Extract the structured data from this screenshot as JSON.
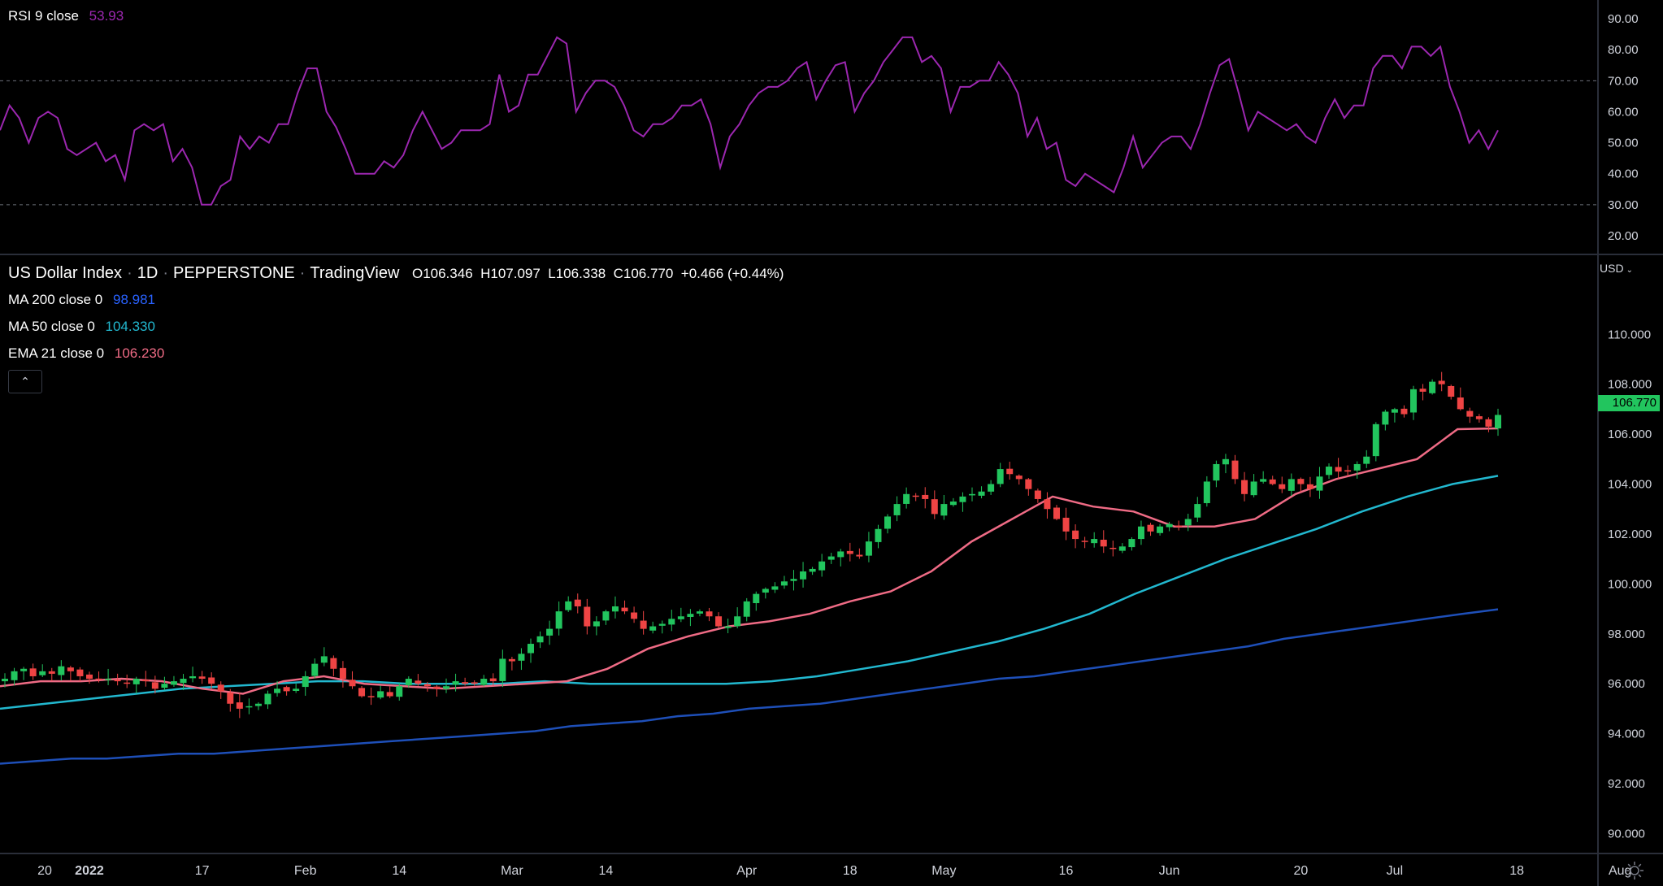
{
  "colors": {
    "background": "#000000",
    "up": "#22c55e",
    "down": "#ef4444",
    "rsi": "#9c27b0",
    "ma200": "#1e4fb8",
    "ma50": "#22b8cf",
    "ema21": "#ef6b85",
    "text": "#d1d4dc",
    "grid": "#2a2e39"
  },
  "rsi_legend": {
    "label": "RSI 9 close",
    "value": "53.93"
  },
  "main_legend": {
    "symbol": "US Dollar Index",
    "interval": "1D",
    "exchange": "PEPPERSTONE",
    "source": "TradingView",
    "ohlc": "O106.346  H107.097  L106.338  C106.770  +0.466 (+0.44%)"
  },
  "ma200_legend": {
    "label": "MA 200 close 0",
    "value": "98.981"
  },
  "ma50_legend": {
    "label": "MA 50 close 0",
    "value": "104.330"
  },
  "ema21_legend": {
    "label": "EMA 21 close 0",
    "value": "106.230"
  },
  "collapse_icon": "chevron-up-icon",
  "currency": "USD",
  "last_price": "106.770",
  "settings_icon": "gear-icon",
  "chart_data": [
    {
      "type": "line",
      "title": "RSI 9 close",
      "ylim": [
        15,
        95
      ],
      "y_ticks": [
        "90.00",
        "80.00",
        "70.00",
        "60.00",
        "50.00",
        "40.00",
        "30.00",
        "20.00"
      ],
      "y_tick_values": [
        90,
        80,
        70,
        60,
        50,
        40,
        30,
        20
      ],
      "bands": [
        70,
        30
      ],
      "series": [
        {
          "name": "RSI 9 close",
          "values": [
            54,
            62,
            58,
            50,
            58,
            60,
            58,
            48,
            46,
            48,
            50,
            44,
            46,
            38,
            54,
            56,
            54,
            56,
            44,
            48,
            42,
            30,
            30,
            36,
            38,
            52,
            48,
            52,
            50,
            56,
            56,
            66,
            74,
            74,
            60,
            55,
            48,
            40,
            40,
            40,
            44,
            42,
            46,
            54,
            60,
            54,
            48,
            50,
            54,
            54,
            54,
            56,
            72,
            60,
            62,
            72,
            72,
            78,
            84,
            82,
            60,
            66,
            70,
            70,
            68,
            62,
            54,
            52,
            56,
            56,
            58,
            62,
            62,
            64,
            56,
            42,
            52,
            56,
            62,
            66,
            68,
            68,
            70,
            74,
            76,
            64,
            70,
            75,
            76,
            60,
            66,
            70,
            76,
            80,
            84,
            84,
            76,
            78,
            74,
            60,
            68,
            68,
            70,
            70,
            76,
            72,
            66,
            52,
            58,
            48,
            50,
            38,
            36,
            40,
            38,
            36,
            34,
            42,
            52,
            42,
            46,
            50,
            52,
            52,
            48,
            56,
            66,
            75,
            77,
            66,
            54,
            60,
            58,
            56,
            54,
            56,
            52,
            50,
            58,
            64,
            58,
            62,
            62,
            74,
            78,
            78,
            74,
            81,
            81,
            78,
            81,
            68,
            60,
            50,
            54,
            48,
            54
          ],
          "last": 53.93
        }
      ]
    },
    {
      "type": "candlestick",
      "title": "US Dollar Index · 1D · PEPPERSTONE",
      "ylim": [
        89.2,
        113.2
      ],
      "y_ticks": [
        "110.000",
        "108.000",
        "106.000",
        "104.000",
        "102.000",
        "100.000",
        "98.000",
        "96.000",
        "94.000",
        "92.000",
        "90.000"
      ],
      "y_tick_values": [
        110,
        108,
        106,
        104,
        102,
        100,
        98,
        96,
        94,
        92,
        90
      ],
      "x_labels": [
        "20",
        "2022",
        "17",
        "Feb",
        "14",
        "Mar",
        "14",
        "Apr",
        "18",
        "May",
        "16",
        "Jun",
        "20",
        "Jul",
        "18",
        "Aug"
      ],
      "x_label_index": [
        -2,
        9,
        21,
        32,
        42,
        54,
        64,
        79,
        90,
        100,
        113,
        124,
        138,
        148,
        161,
        172
      ],
      "closes": [
        96.2,
        96.5,
        96.6,
        96.3,
        96.5,
        96.4,
        96.7,
        96.5,
        96.3,
        96.2,
        96.2,
        96.2,
        96.1,
        96.0,
        96.2,
        96.1,
        95.8,
        96.0,
        96.1,
        96.2,
        96.3,
        96.2,
        96.0,
        95.7,
        95.2,
        95.0,
        95.1,
        95.2,
        95.6,
        95.8,
        95.7,
        95.8,
        96.3,
        96.8,
        97.1,
        96.6,
        96.2,
        95.9,
        95.5,
        95.5,
        95.7,
        95.5,
        95.9,
        96.2,
        96.0,
        95.9,
        95.8,
        95.9,
        96.1,
        96.0,
        96.0,
        96.2,
        96.1,
        97.0,
        96.9,
        97.2,
        97.6,
        97.9,
        98.2,
        98.9,
        99.3,
        99.1,
        98.3,
        98.5,
        98.9,
        99.1,
        98.9,
        98.6,
        98.2,
        98.3,
        98.4,
        98.6,
        98.7,
        98.8,
        98.9,
        98.7,
        98.3,
        98.3,
        98.7,
        99.3,
        99.6,
        99.8,
        99.9,
        100.1,
        100.2,
        100.5,
        100.6,
        100.9,
        101.1,
        101.3,
        101.2,
        101.1,
        101.7,
        102.2,
        102.7,
        103.2,
        103.6,
        103.5,
        103.4,
        102.8,
        103.2,
        103.3,
        103.5,
        103.6,
        103.7,
        104.0,
        104.6,
        104.4,
        104.2,
        103.8,
        103.4,
        103.0,
        102.6,
        102.1,
        101.8,
        101.7,
        101.8,
        101.5,
        101.4,
        101.5,
        101.8,
        102.3,
        102.1,
        102.3,
        102.4,
        102.3,
        102.6,
        103.2,
        104.1,
        104.8,
        105.0,
        104.2,
        103.6,
        104.1,
        104.2,
        104.0,
        103.8,
        104.2,
        104.0,
        103.8,
        104.3,
        104.7,
        104.5,
        104.5,
        104.8,
        105.1,
        106.4,
        106.9,
        107.0,
        106.8,
        107.8,
        107.7,
        108.1,
        108.0,
        107.5,
        107.0,
        106.7,
        106.6,
        106.3,
        106.77
      ],
      "series": [
        {
          "name": "MA 200 close 0",
          "values": [
            92.8,
            92.9,
            93.0,
            93.0,
            93.1,
            93.2,
            93.2,
            93.3,
            93.4,
            93.5,
            93.6,
            93.7,
            93.8,
            93.9,
            94.0,
            94.1,
            94.3,
            94.4,
            94.5,
            94.7,
            94.8,
            95.0,
            95.1,
            95.2,
            95.4,
            95.6,
            95.8,
            96.0,
            96.2,
            96.3,
            96.5,
            96.7,
            96.9,
            97.1,
            97.3,
            97.5,
            97.8,
            98.0,
            98.2,
            98.4,
            98.6,
            98.8,
            98.981
          ]
        },
        {
          "name": "MA 50 close 0",
          "values": [
            95.0,
            95.2,
            95.4,
            95.6,
            95.8,
            95.9,
            96.0,
            96.1,
            96.1,
            96.0,
            96.0,
            96.0,
            96.1,
            96.0,
            96.0,
            96.0,
            96.0,
            96.1,
            96.3,
            96.6,
            96.9,
            97.3,
            97.7,
            98.2,
            98.8,
            99.6,
            100.3,
            101.0,
            101.6,
            102.2,
            102.9,
            103.5,
            104.0,
            104.33
          ]
        },
        {
          "name": "EMA 21 close 0",
          "values": [
            95.9,
            96.1,
            96.1,
            96.2,
            96.1,
            95.8,
            95.6,
            96.1,
            96.3,
            96.0,
            95.9,
            95.8,
            95.9,
            96.0,
            96.1,
            96.6,
            97.4,
            97.9,
            98.3,
            98.5,
            98.8,
            99.3,
            99.7,
            100.5,
            101.7,
            102.6,
            103.5,
            103.1,
            102.9,
            102.3,
            102.3,
            102.6,
            103.6,
            104.2,
            104.6,
            105.0,
            106.2,
            106.23
          ]
        }
      ]
    }
  ]
}
